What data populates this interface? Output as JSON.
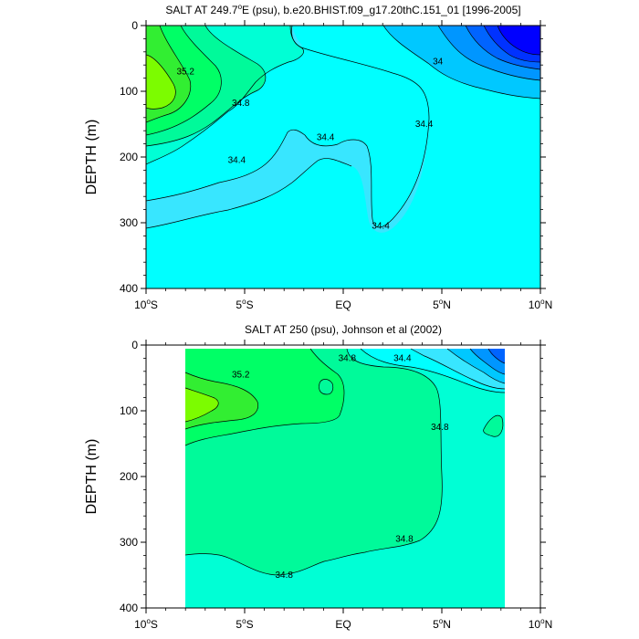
{
  "colors": {
    "c33_8": "#38e6ff",
    "c34_0": "#00ffff",
    "c34_4": "#00ffd5",
    "c34_8": "#00fa9a",
    "c35_2": "#00ff66",
    "c35_6": "#32ee32",
    "c36_0": "#7cfc00",
    "c33_6": "#00c8ff",
    "c33_4": "#0096ff",
    "c33_2": "#0064ff",
    "c33_0": "#0032ff",
    "c32_8": "#0000ff"
  },
  "chart_data": [
    {
      "type": "contour",
      "title_parts": {
        "main": "SALT AT 249.7",
        "degree": "o",
        "rest": "E (psu), b.e20.BHIST.f09_g17.20thC.151_01 [1996-2005]"
      },
      "ylabel": "DEPTH (m)",
      "x_ticks": [
        {
          "value": -10,
          "main": "10",
          "sup": "o",
          "tail": "S"
        },
        {
          "value": -5,
          "main": "5",
          "sup": "o",
          "tail": "S"
        },
        {
          "value": 0,
          "main": "EQ",
          "sup": "",
          "tail": ""
        },
        {
          "value": 5,
          "main": "5",
          "sup": "o",
          "tail": "N"
        },
        {
          "value": 10,
          "main": "10",
          "sup": "o",
          "tail": "N"
        }
      ],
      "y_ticks": [
        0,
        100,
        200,
        300,
        400
      ],
      "xlim": [
        -10,
        10
      ],
      "ylim": [
        400,
        0
      ],
      "contour_labels": [
        {
          "text": "35.2",
          "lat": -8.0,
          "depth": 70
        },
        {
          "text": "34.8",
          "lat": -5.2,
          "depth": 118
        },
        {
          "text": "34.4",
          "lat": -5.4,
          "depth": 205
        },
        {
          "text": "34.4",
          "lat": -0.9,
          "depth": 170
        },
        {
          "text": "34.4",
          "lat": 1.9,
          "depth": 305
        },
        {
          "text": "34.4",
          "lat": 4.1,
          "depth": 150
        },
        {
          "text": "34",
          "lat": 4.8,
          "depth": 55
        }
      ]
    },
    {
      "type": "contour",
      "title_parts": {
        "main": "SALT AT 250 (psu), Johnson et al (2002)",
        "degree": "",
        "rest": ""
      },
      "ylabel": "DEPTH (m)",
      "x_ticks": [
        {
          "value": -10,
          "main": "10",
          "sup": "o",
          "tail": "S"
        },
        {
          "value": -5,
          "main": "5",
          "sup": "o",
          "tail": "S"
        },
        {
          "value": 0,
          "main": "EQ",
          "sup": "",
          "tail": ""
        },
        {
          "value": 5,
          "main": "5",
          "sup": "o",
          "tail": "N"
        },
        {
          "value": 10,
          "main": "10",
          "sup": "o",
          "tail": "N"
        }
      ],
      "y_ticks": [
        0,
        100,
        200,
        300,
        400
      ],
      "xlim": [
        -10,
        10
      ],
      "ylim": [
        400,
        0
      ],
      "data_lat_range": [
        -8,
        8.2
      ],
      "contour_labels": [
        {
          "text": "35.2",
          "lat": -5.2,
          "depth": 45
        },
        {
          "text": "34.8",
          "lat": 0.2,
          "depth": 20
        },
        {
          "text": "34.4",
          "lat": 3.0,
          "depth": 20
        },
        {
          "text": "34.8",
          "lat": 4.9,
          "depth": 125
        },
        {
          "text": "34.8",
          "lat": 3.1,
          "depth": 295
        },
        {
          "text": "34.8",
          "lat": -3.0,
          "depth": 350
        }
      ]
    }
  ]
}
